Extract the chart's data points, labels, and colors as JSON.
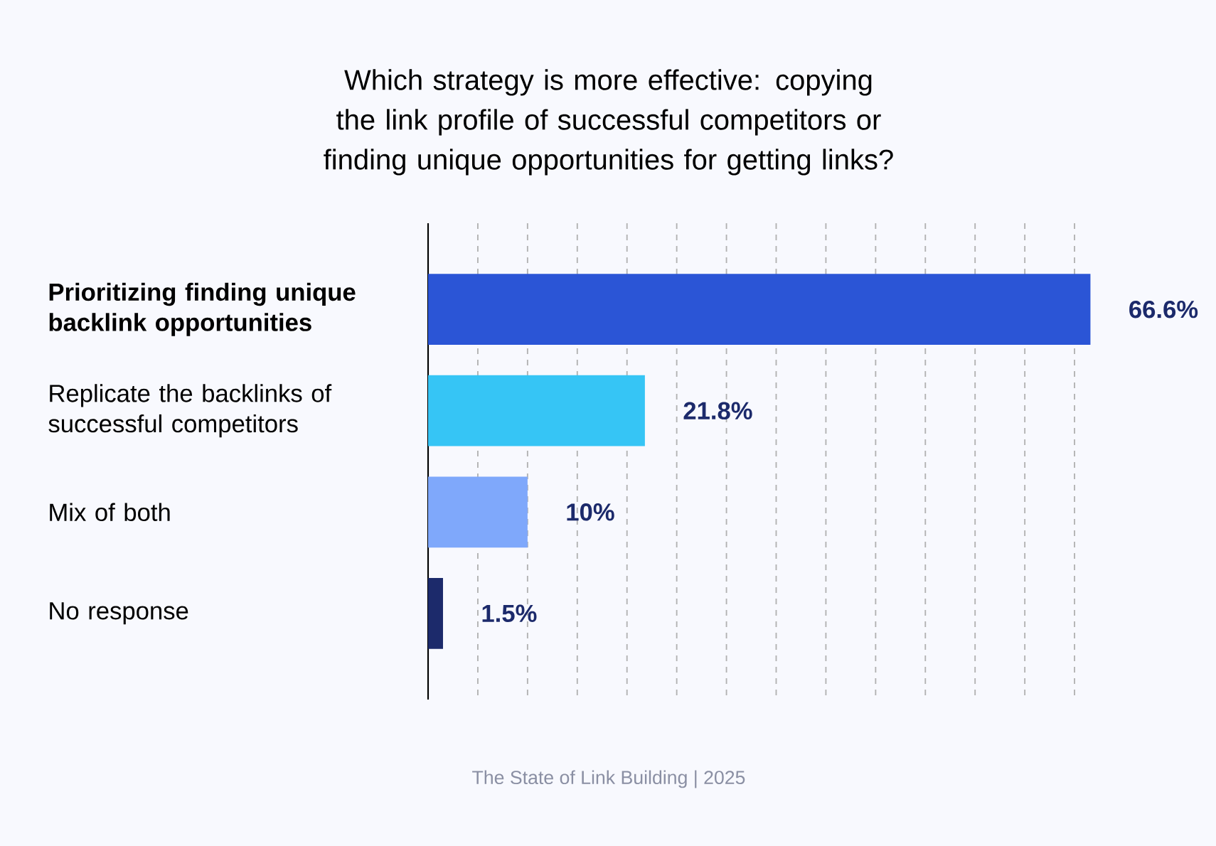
{
  "chart_data": {
    "type": "bar",
    "orientation": "horizontal",
    "title": "Which strategy is more effective: copying the link profile of successful competitors or finding unique opportunities for getting links?",
    "categories": [
      "**Prioritizing finding unique backlink opportunities**",
      "Replicate the backlinks of successful competitors",
      "Mix of both",
      "No response"
    ],
    "values": [
      66.6,
      21.8,
      10,
      1.5
    ],
    "colors": [
      "#2b55d6",
      "#36c5f5",
      "#7fa8fb",
      "#1c2a6b"
    ],
    "value_labels": [
      "66.6%",
      "21.8%",
      "10%",
      "1.5%"
    ],
    "grid": "x",
    "tick_labels": "y",
    "annotations": [
      "The State of Link Building | 2025"
    ]
  }
}
